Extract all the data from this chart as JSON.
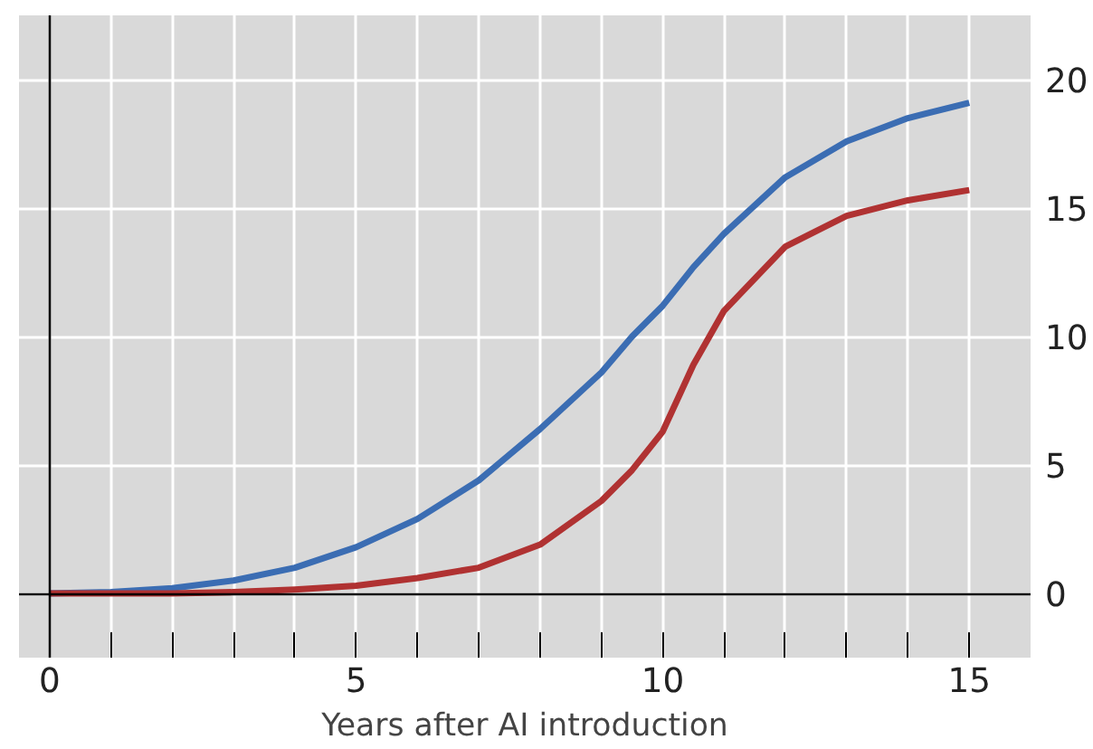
{
  "chart_data": {
    "type": "line",
    "xlabel": "Years after AI introduction",
    "series": [
      {
        "color": "#3b6db3",
        "x": [
          0,
          1,
          2,
          3,
          4,
          5,
          6,
          7,
          8,
          9,
          9.5,
          10,
          10.5,
          11,
          12,
          13,
          14,
          15
        ],
        "values": [
          0,
          0.05,
          0.2,
          0.5,
          1.0,
          1.8,
          2.9,
          4.4,
          6.4,
          8.6,
          10.0,
          11.2,
          12.7,
          14.0,
          16.2,
          17.6,
          18.5,
          19.1
        ]
      },
      {
        "color": "#b03232",
        "x": [
          0,
          1,
          2,
          3,
          4,
          5,
          6,
          7,
          8,
          9,
          9.5,
          10,
          10.5,
          11,
          12,
          13,
          14,
          15
        ],
        "values": [
          0,
          0,
          0,
          0.05,
          0.15,
          0.3,
          0.6,
          1.0,
          1.9,
          3.6,
          4.8,
          6.3,
          8.9,
          11.0,
          13.5,
          14.7,
          15.3,
          15.7
        ]
      }
    ],
    "xlim": [
      -0.5,
      16
    ],
    "ylim": [
      -2.5,
      22.5
    ],
    "xticks": [
      0,
      {
        "value": 1,
        "label": null
      },
      {
        "value": 2,
        "label": null
      },
      {
        "value": 3,
        "label": null
      },
      {
        "value": 4,
        "label": null
      },
      5,
      {
        "value": 6,
        "label": null
      },
      {
        "value": 7,
        "label": null
      },
      {
        "value": 8,
        "label": null
      },
      {
        "value": 9,
        "label": null
      },
      10,
      {
        "value": 11,
        "label": null
      },
      {
        "value": 12,
        "label": null
      },
      {
        "value": 13,
        "label": null
      },
      {
        "value": 14,
        "label": null
      },
      15
    ],
    "yticks": [
      0,
      5,
      10,
      15,
      20
    ],
    "grid": true,
    "line_style": "solid"
  }
}
